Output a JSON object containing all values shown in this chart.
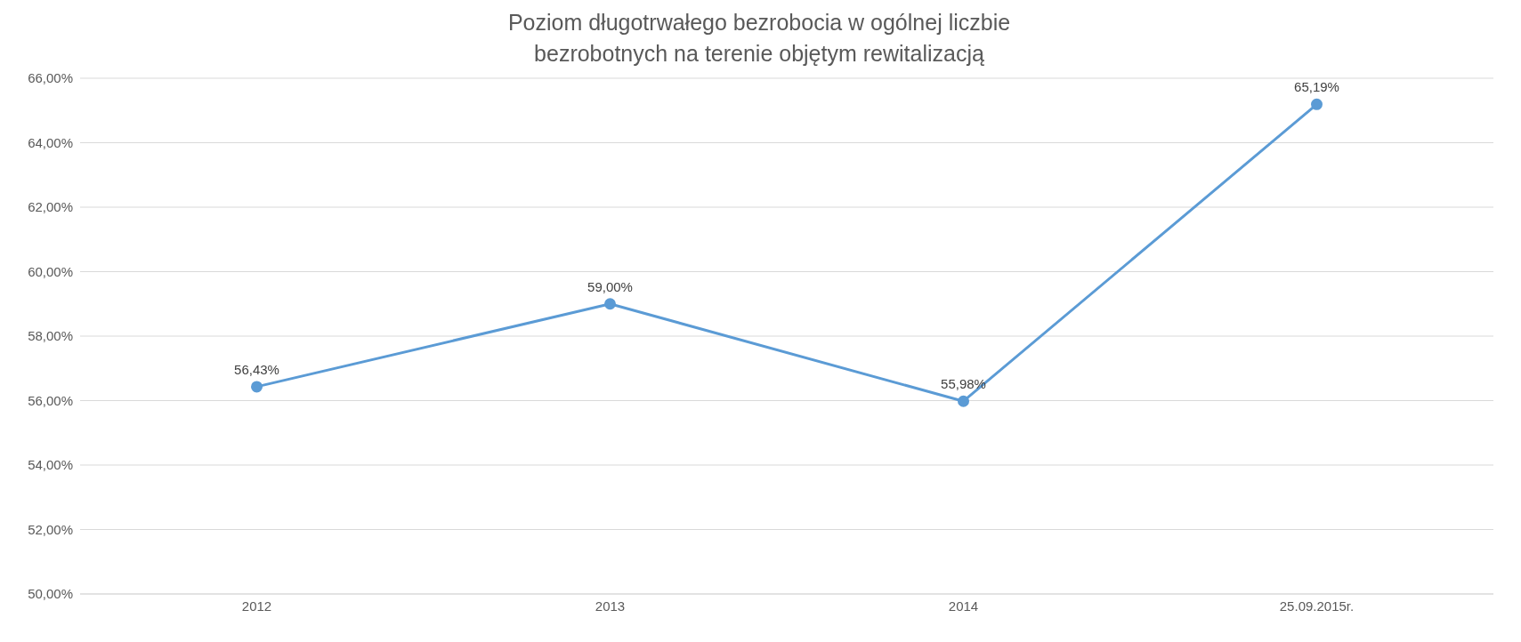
{
  "chart_data": {
    "type": "line",
    "title": "Poziom długotrwałego bezrobocia w ogólnej liczbie bezrobotnych na terenie objętym rewitalizacją",
    "categories": [
      "2012",
      "2013",
      "2014",
      "25.09.2015r."
    ],
    "series": [
      {
        "color": "#5b9bd5",
        "values": [
          56.43,
          59.0,
          55.98,
          65.19
        ],
        "value_labels": [
          "56,43%",
          "59,00%",
          "55,98%",
          "65,19%"
        ]
      }
    ],
    "ylim": [
      50,
      66
    ],
    "yticks": [
      {
        "value": 50,
        "label": "50,00%"
      },
      {
        "value": 52,
        "label": "52,00%"
      },
      {
        "value": 54,
        "label": "54,00%"
      },
      {
        "value": 56,
        "label": "56,00%"
      },
      {
        "value": 58,
        "label": "58,00%"
      },
      {
        "value": 60,
        "label": "60,00%"
      },
      {
        "value": 62,
        "label": "62,00%"
      },
      {
        "value": 64,
        "label": "64,00%"
      },
      {
        "value": 66,
        "label": "66,00%"
      }
    ],
    "grid": "y",
    "marker": "circle",
    "line_style": "solid"
  }
}
